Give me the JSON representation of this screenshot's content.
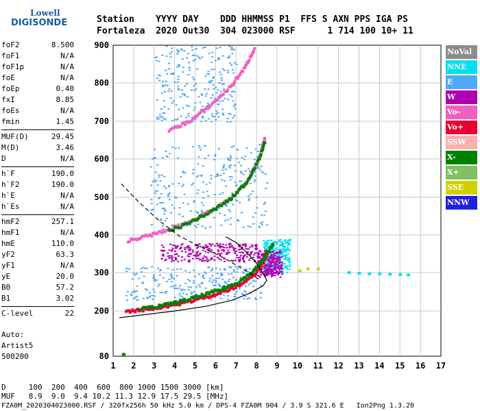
{
  "logo": {
    "line1": "Lowell",
    "line2": "DIGISONDE"
  },
  "header": {
    "line1": "Station    YYYY DAY    DDD HHMMSS P1  FFS S AXN PPS IGA PS",
    "line2": "Fortaleza  2020 Out30  304 023000 RSF      1 714 100 10+ 11"
  },
  "params": [
    {
      "key": "foF2",
      "value": "8.500"
    },
    {
      "key": "foF1",
      "value": "N/A"
    },
    {
      "key": "foF1p",
      "value": "N/A"
    },
    {
      "key": "foE",
      "value": "N/A"
    },
    {
      "key": "foEp",
      "value": "0.40"
    },
    {
      "key": "fxI",
      "value": "8.85"
    },
    {
      "key": "foEs",
      "value": "N/A"
    },
    {
      "key": "fmin",
      "value": "1.45"
    },
    {
      "key": "MUF(D)",
      "value": "29.45",
      "sep": true
    },
    {
      "key": "M(D)",
      "value": "3.46"
    },
    {
      "key": "D",
      "value": "N/A"
    },
    {
      "key": "h`F",
      "value": "190.0",
      "sep": true
    },
    {
      "key": "h`F2",
      "value": "190.0"
    },
    {
      "key": "h`E",
      "value": "N/A"
    },
    {
      "key": "h`Es",
      "value": "N/A"
    },
    {
      "key": "hmF2",
      "value": "257.1",
      "sep": true
    },
    {
      "key": "hmF1",
      "value": "N/A"
    },
    {
      "key": "hmE",
      "value": "110.0"
    },
    {
      "key": "yF2",
      "value": "63.3"
    },
    {
      "key": "yF1",
      "value": "N/A"
    },
    {
      "key": "yE",
      "value": "20.0"
    },
    {
      "key": "B0",
      "value": "57.2"
    },
    {
      "key": "B1",
      "value": "3.02"
    },
    {
      "key": "C-level",
      "value": "22",
      "sep": true
    }
  ],
  "auto": {
    "l1": "Auto:",
    "l2": "Artist5",
    "l3": "500200"
  },
  "legend": [
    {
      "label": "NoVal",
      "color": "#8c8c8c"
    },
    {
      "label": "NNE",
      "color": "#00e0f0"
    },
    {
      "label": "E",
      "color": "#50a8f8"
    },
    {
      "label": "W",
      "color": "#b000b0"
    },
    {
      "label": "Vo-",
      "color": "#f060c0"
    },
    {
      "label": "Vo+",
      "color": "#e80030"
    },
    {
      "label": "SSW",
      "color": "#f8b0b0"
    },
    {
      "label": "X-",
      "color": "#008000"
    },
    {
      "label": "X+",
      "color": "#80c060"
    },
    {
      "label": "SSE",
      "color": "#d0d000"
    },
    {
      "label": "NNW",
      "color": "#2020e0"
    }
  ],
  "bottom": {
    "line1": "D     100  200  400  600  800 1000 1500 3000 [km]",
    "line2": "MUF   8.9  9.0  9.4 10.2 11.3 12.9 17.5 29.5 [MHz]"
  },
  "footer": "FZA0M_2020304023000.RSF / 320fx256h 50 kHz 5.0 km / DPS-4 FZA0M 904 / 3.9 S 321.6 E   Ion2Png 1.3.20",
  "chart_data": {
    "type": "scatter",
    "title": "",
    "xlabel": "",
    "ylabel": "",
    "xlim": [
      1,
      17
    ],
    "ylim": [
      80,
      900
    ],
    "xticks": [
      1,
      2,
      3,
      4,
      5,
      6,
      7,
      8,
      9,
      10,
      11,
      12,
      13,
      14,
      15,
      16,
      17
    ],
    "yticks": [
      80,
      200,
      300,
      400,
      500,
      600,
      700,
      800,
      900
    ],
    "grid": true,
    "traces": [
      {
        "name": "O-trace F2",
        "color": "#e80030",
        "points": [
          [
            1.6,
            198
          ],
          [
            2.5,
            204
          ],
          [
            3.5,
            212
          ],
          [
            4.5,
            222
          ],
          [
            5.5,
            236
          ],
          [
            6.5,
            252
          ],
          [
            7.3,
            272
          ],
          [
            7.9,
            298
          ],
          [
            8.3,
            330
          ],
          [
            8.5,
            360
          ]
        ]
      },
      {
        "name": "X-trace F2",
        "color": "#008000",
        "points": [
          [
            2.3,
            205
          ],
          [
            3.3,
            213
          ],
          [
            4.3,
            225
          ],
          [
            5.3,
            240
          ],
          [
            6.3,
            257
          ],
          [
            7.1,
            276
          ],
          [
            7.8,
            302
          ],
          [
            8.3,
            335
          ],
          [
            8.8,
            375
          ]
        ]
      },
      {
        "name": "2nd hop O",
        "color": "#f060c0",
        "points": [
          [
            1.7,
            385
          ],
          [
            2.7,
            398
          ],
          [
            3.7,
            414
          ],
          [
            4.7,
            435
          ],
          [
            5.7,
            462
          ],
          [
            6.7,
            495
          ],
          [
            7.5,
            540
          ],
          [
            8.1,
            600
          ],
          [
            8.4,
            660
          ]
        ]
      },
      {
        "name": "2nd hop X",
        "color": "#008000",
        "points": [
          [
            3.7,
            410
          ],
          [
            4.7,
            433
          ],
          [
            5.7,
            460
          ],
          [
            6.7,
            495
          ],
          [
            7.5,
            540
          ],
          [
            8.1,
            600
          ],
          [
            8.4,
            650
          ]
        ]
      },
      {
        "name": "3rd hop",
        "color": "#f060c0",
        "points": [
          [
            3.7,
            675
          ],
          [
            4.7,
            700
          ],
          [
            5.7,
            740
          ],
          [
            6.7,
            790
          ],
          [
            7.4,
            840
          ],
          [
            7.9,
            895
          ]
        ]
      }
    ],
    "spread_regions": [
      {
        "color": "#50a8f8",
        "x": [
          1.6,
          8.2
        ],
        "y": [
          230,
          320
        ]
      },
      {
        "color": "#50a8f8",
        "x": [
          2.8,
          8.5
        ],
        "y": [
          420,
          640
        ]
      },
      {
        "color": "#00e0f0",
        "x": [
          8.3,
          9.6
        ],
        "y": [
          300,
          390
        ]
      },
      {
        "color": "#b000b0",
        "x": [
          3.3,
          8.0
        ],
        "y": [
          330,
          380
        ]
      },
      {
        "color": "#b000b0",
        "x": [
          8.0,
          9.2
        ],
        "y": [
          290,
          360
        ]
      },
      {
        "color": "#50a8f8",
        "x": [
          3.0,
          7.0
        ],
        "y": [
          700,
          900
        ]
      }
    ],
    "isolated_points": [
      {
        "x": 12.5,
        "y": 300,
        "color": "#00e0f0"
      },
      {
        "x": 13.0,
        "y": 298,
        "color": "#00e0f0"
      },
      {
        "x": 13.5,
        "y": 297,
        "color": "#00e0f0"
      },
      {
        "x": 14.0,
        "y": 297,
        "color": "#00e0f0"
      },
      {
        "x": 14.5,
        "y": 296,
        "color": "#00e0f0"
      },
      {
        "x": 15.0,
        "y": 295,
        "color": "#00e0f0"
      },
      {
        "x": 15.4,
        "y": 294,
        "color": "#00e0f0"
      },
      {
        "x": 10.1,
        "y": 305,
        "color": "#d0d000"
      },
      {
        "x": 10.5,
        "y": 310,
        "color": "#d0d000"
      },
      {
        "x": 11.0,
        "y": 310,
        "color": "#d0d000"
      },
      {
        "x": 1.5,
        "y": 85,
        "color": "#008000"
      }
    ],
    "profile_solid": [
      [
        1.3,
        182
      ],
      [
        2.5,
        190
      ],
      [
        4,
        200
      ],
      [
        5.5,
        212
      ],
      [
        6.8,
        228
      ],
      [
        7.6,
        245
      ],
      [
        8.3,
        265
      ],
      [
        8.5,
        280
      ],
      [
        8.3,
        300
      ],
      [
        8.0,
        325
      ],
      [
        7.5,
        355
      ],
      [
        7.0,
        380
      ],
      [
        6.5,
        395
      ]
    ],
    "profile_dashed": [
      [
        1.4,
        535
      ],
      [
        2.2,
        490
      ],
      [
        3.2,
        440
      ],
      [
        4.2,
        398
      ],
      [
        5.2,
        370
      ],
      [
        6.2,
        345
      ],
      [
        7.0,
        320
      ],
      [
        7.8,
        295
      ],
      [
        8.2,
        278
      ]
    ]
  }
}
